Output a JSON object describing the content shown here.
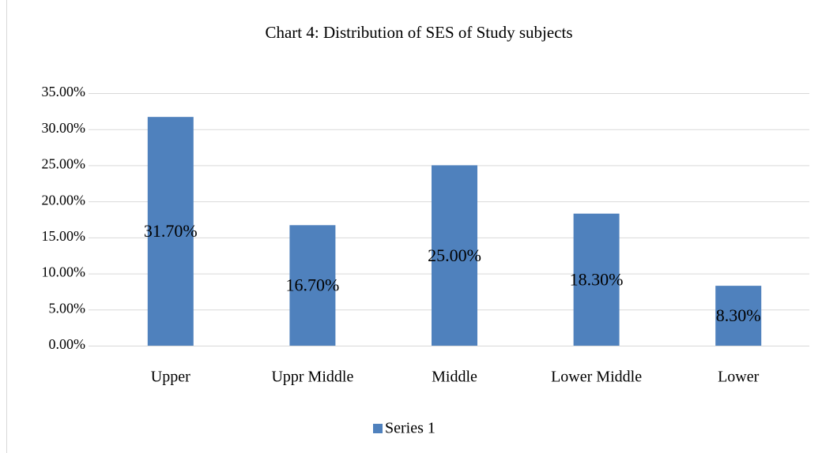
{
  "chart_data": {
    "type": "bar",
    "title": "Chart 4: Distribution of SES of Study subjects",
    "categories": [
      "Upper",
      "Uppr Middle",
      "Middle",
      "Lower Middle",
      "Lower"
    ],
    "series": [
      {
        "name": "Series 1",
        "color": "#4f81bd",
        "values": [
          31.7,
          16.7,
          25.0,
          18.3,
          8.3
        ],
        "value_labels": [
          "31.70%",
          "16.70%",
          "25.00%",
          "18.30%",
          "8.30%"
        ]
      }
    ],
    "ylim": [
      0,
      35
    ],
    "yticks": [
      {
        "value": 0,
        "label": "0.00%"
      },
      {
        "value": 5,
        "label": "5.00%"
      },
      {
        "value": 10,
        "label": "10.00%"
      },
      {
        "value": 15,
        "label": "15.00%"
      },
      {
        "value": 20,
        "label": "20.00%"
      },
      {
        "value": 25,
        "label": "25.00%"
      },
      {
        "value": 30,
        "label": "30.00%"
      },
      {
        "value": 35,
        "label": "35.00%"
      }
    ],
    "grid": true,
    "legend": "bottom"
  }
}
